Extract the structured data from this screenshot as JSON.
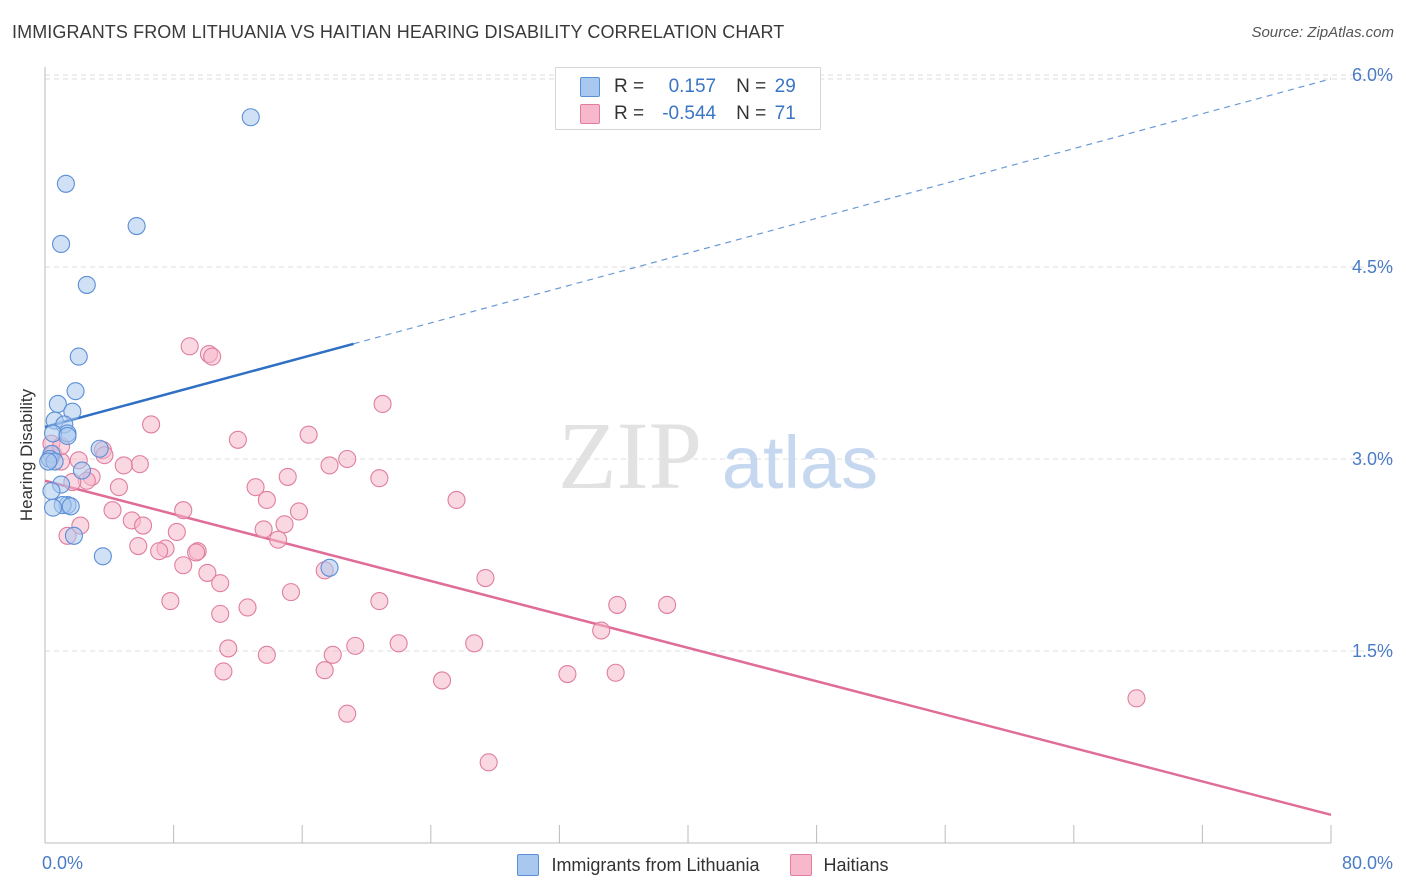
{
  "title": "IMMIGRANTS FROM LITHUANIA VS HAITIAN HEARING DISABILITY CORRELATION CHART",
  "source": "Source: ZipAtlas.com",
  "watermark": {
    "zip": "ZIP",
    "atlas": "atlas"
  },
  "legend_top": {
    "rows": [
      {
        "r_label": "R =",
        "r_value": "0.157",
        "n_label": "N =",
        "n_value": "29"
      },
      {
        "r_label": "R =",
        "r_value": "-0.544",
        "n_label": "N =",
        "n_value": "71"
      }
    ]
  },
  "colors": {
    "blue_fill": "#a9c8ef",
    "blue_stroke": "#5b8fd6",
    "blue_line": "#2f6fc4",
    "pink_fill": "#f6b8ca",
    "pink_stroke": "#e07ea0",
    "pink_line": "#e06c98",
    "axis_text": "#4a7cc6",
    "grid": "#dddddd"
  },
  "chart_data": {
    "type": "scatter",
    "title": "IMMIGRANTS FROM LITHUANIA VS HAITIAN HEARING DISABILITY CORRELATION CHART",
    "xlabel": "",
    "ylabel": "Hearing Disability",
    "xlim": [
      0,
      80
    ],
    "ylim": [
      0,
      6.3
    ],
    "x_tick_labels": [
      "0.0%",
      "80.0%"
    ],
    "y_ticks": [
      1.5,
      3.0,
      4.5,
      6.0
    ],
    "y_tick_labels": [
      "1.5%",
      "3.0%",
      "4.5%",
      "6.0%"
    ],
    "grid": true,
    "series": [
      {
        "name": "Immigrants from Lithuania",
        "color": "#a9c8ef",
        "trend": {
          "x": [
            0,
            19.2
          ],
          "y": [
            3.25,
            3.9
          ],
          "extended_to": [
            80,
            5.97
          ]
        },
        "points": [
          [
            12.8,
            5.67
          ],
          [
            1.3,
            5.15
          ],
          [
            5.7,
            4.82
          ],
          [
            1.0,
            4.68
          ],
          [
            2.6,
            4.36
          ],
          [
            2.1,
            3.8
          ],
          [
            1.9,
            3.53
          ],
          [
            0.8,
            3.43
          ],
          [
            1.7,
            3.37
          ],
          [
            0.6,
            3.3
          ],
          [
            1.2,
            3.27
          ],
          [
            1.4,
            3.2
          ],
          [
            0.5,
            3.2
          ],
          [
            1.4,
            3.18
          ],
          [
            3.4,
            3.08
          ],
          [
            0.4,
            3.04
          ],
          [
            0.3,
            3.0
          ],
          [
            0.6,
            2.98
          ],
          [
            2.3,
            2.91
          ],
          [
            1.0,
            2.8
          ],
          [
            0.4,
            2.75
          ],
          [
            1.4,
            2.64
          ],
          [
            1.1,
            2.64
          ],
          [
            1.6,
            2.63
          ],
          [
            0.5,
            2.62
          ],
          [
            1.8,
            2.4
          ],
          [
            3.6,
            2.24
          ],
          [
            17.7,
            2.15
          ],
          [
            0.2,
            2.98
          ]
        ]
      },
      {
        "name": "Haitians",
        "color": "#f6b8ca",
        "trend": {
          "x": [
            0,
            80
          ],
          "y": [
            2.83,
            0.22
          ]
        },
        "points": [
          [
            9.0,
            3.88
          ],
          [
            10.2,
            3.82
          ],
          [
            10.4,
            3.8
          ],
          [
            21.0,
            3.43
          ],
          [
            6.6,
            3.27
          ],
          [
            16.4,
            3.19
          ],
          [
            12.0,
            3.15
          ],
          [
            0.4,
            3.12
          ],
          [
            3.6,
            3.07
          ],
          [
            0.5,
            3.04
          ],
          [
            3.7,
            3.03
          ],
          [
            18.8,
            3.0
          ],
          [
            1.0,
            2.98
          ],
          [
            2.1,
            2.99
          ],
          [
            5.9,
            2.96
          ],
          [
            4.9,
            2.95
          ],
          [
            17.7,
            2.95
          ],
          [
            15.1,
            2.86
          ],
          [
            20.8,
            2.85
          ],
          [
            2.9,
            2.86
          ],
          [
            2.6,
            2.83
          ],
          [
            1.7,
            2.82
          ],
          [
            4.6,
            2.78
          ],
          [
            13.1,
            2.78
          ],
          [
            25.6,
            2.68
          ],
          [
            13.8,
            2.68
          ],
          [
            8.6,
            2.6
          ],
          [
            4.2,
            2.6
          ],
          [
            15.8,
            2.59
          ],
          [
            5.4,
            2.52
          ],
          [
            2.2,
            2.48
          ],
          [
            6.1,
            2.48
          ],
          [
            14.9,
            2.49
          ],
          [
            13.6,
            2.45
          ],
          [
            8.2,
            2.43
          ],
          [
            1.4,
            2.4
          ],
          [
            14.5,
            2.37
          ],
          [
            5.8,
            2.32
          ],
          [
            7.5,
            2.3
          ],
          [
            7.1,
            2.28
          ],
          [
            9.5,
            2.28
          ],
          [
            9.4,
            2.27
          ],
          [
            8.6,
            2.17
          ],
          [
            17.4,
            2.13
          ],
          [
            10.1,
            2.11
          ],
          [
            27.4,
            2.07
          ],
          [
            10.9,
            2.03
          ],
          [
            15.3,
            1.96
          ],
          [
            7.8,
            1.89
          ],
          [
            20.8,
            1.89
          ],
          [
            35.6,
            1.86
          ],
          [
            38.7,
            1.86
          ],
          [
            12.6,
            1.84
          ],
          [
            10.9,
            1.79
          ],
          [
            34.6,
            1.66
          ],
          [
            26.7,
            1.56
          ],
          [
            22.0,
            1.56
          ],
          [
            19.3,
            1.54
          ],
          [
            11.4,
            1.52
          ],
          [
            17.9,
            1.47
          ],
          [
            13.8,
            1.47
          ],
          [
            11.1,
            1.34
          ],
          [
            17.4,
            1.35
          ],
          [
            32.5,
            1.32
          ],
          [
            35.5,
            1.33
          ],
          [
            24.7,
            1.27
          ],
          [
            67.9,
            1.13
          ],
          [
            18.8,
            1.01
          ],
          [
            27.6,
            0.63
          ],
          [
            1.0,
            3.1
          ],
          [
            0.3,
            3.0
          ]
        ]
      }
    ]
  },
  "bottom_legend": [
    {
      "label": "Immigrants from Lithuania"
    },
    {
      "label": "Haitians"
    }
  ]
}
